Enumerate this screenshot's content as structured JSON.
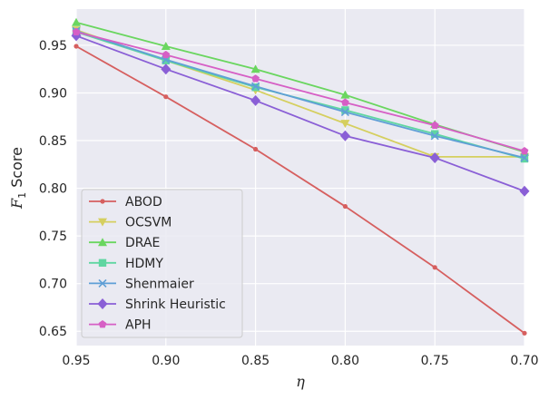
{
  "chart_data": {
    "type": "line",
    "title": "",
    "xlabel": "η",
    "ylabel": {
      "prefix": "F",
      "subscript": "1",
      "suffix": " Score"
    },
    "x": [
      0.95,
      0.9,
      0.85,
      0.8,
      0.75,
      0.7
    ],
    "xlim": [
      0.95,
      0.7
    ],
    "ylim": [
      0.635,
      0.988
    ],
    "xticks": [
      "0.95",
      "0.90",
      "0.85",
      "0.80",
      "0.75",
      "0.70"
    ],
    "yticks": [
      "0.65",
      "0.70",
      "0.75",
      "0.80",
      "0.85",
      "0.90",
      "0.95"
    ],
    "grid": true,
    "legend_position": "lower-left",
    "series": [
      {
        "name": "ABOD",
        "color": "#d65f5f",
        "marker": "dot",
        "values": [
          0.949,
          0.896,
          0.841,
          0.781,
          0.717,
          0.648
        ]
      },
      {
        "name": "OCSVM",
        "color": "#d5cf5f",
        "marker": "triangle-down",
        "values": [
          0.966,
          0.934,
          0.903,
          0.868,
          0.833,
          0.833
        ]
      },
      {
        "name": "DRAE",
        "color": "#6ad65f",
        "marker": "triangle-up",
        "values": [
          0.974,
          0.949,
          0.925,
          0.898,
          0.867,
          0.838
        ]
      },
      {
        "name": "HDMY",
        "color": "#5fd6a1",
        "marker": "square",
        "values": [
          0.964,
          0.934,
          0.906,
          0.882,
          0.857,
          0.831
        ]
      },
      {
        "name": "Shenmaier",
        "color": "#5f9fd6",
        "marker": "x",
        "values": [
          0.965,
          0.935,
          0.907,
          0.88,
          0.855,
          0.832
        ]
      },
      {
        "name": "Shrink Heuristic",
        "color": "#8a5fd6",
        "marker": "diamond",
        "values": [
          0.96,
          0.925,
          0.892,
          0.855,
          0.832,
          0.797
        ]
      },
      {
        "name": "APH",
        "color": "#d65fc5",
        "marker": "pentagon",
        "values": [
          0.964,
          0.94,
          0.915,
          0.89,
          0.866,
          0.839
        ]
      }
    ]
  }
}
